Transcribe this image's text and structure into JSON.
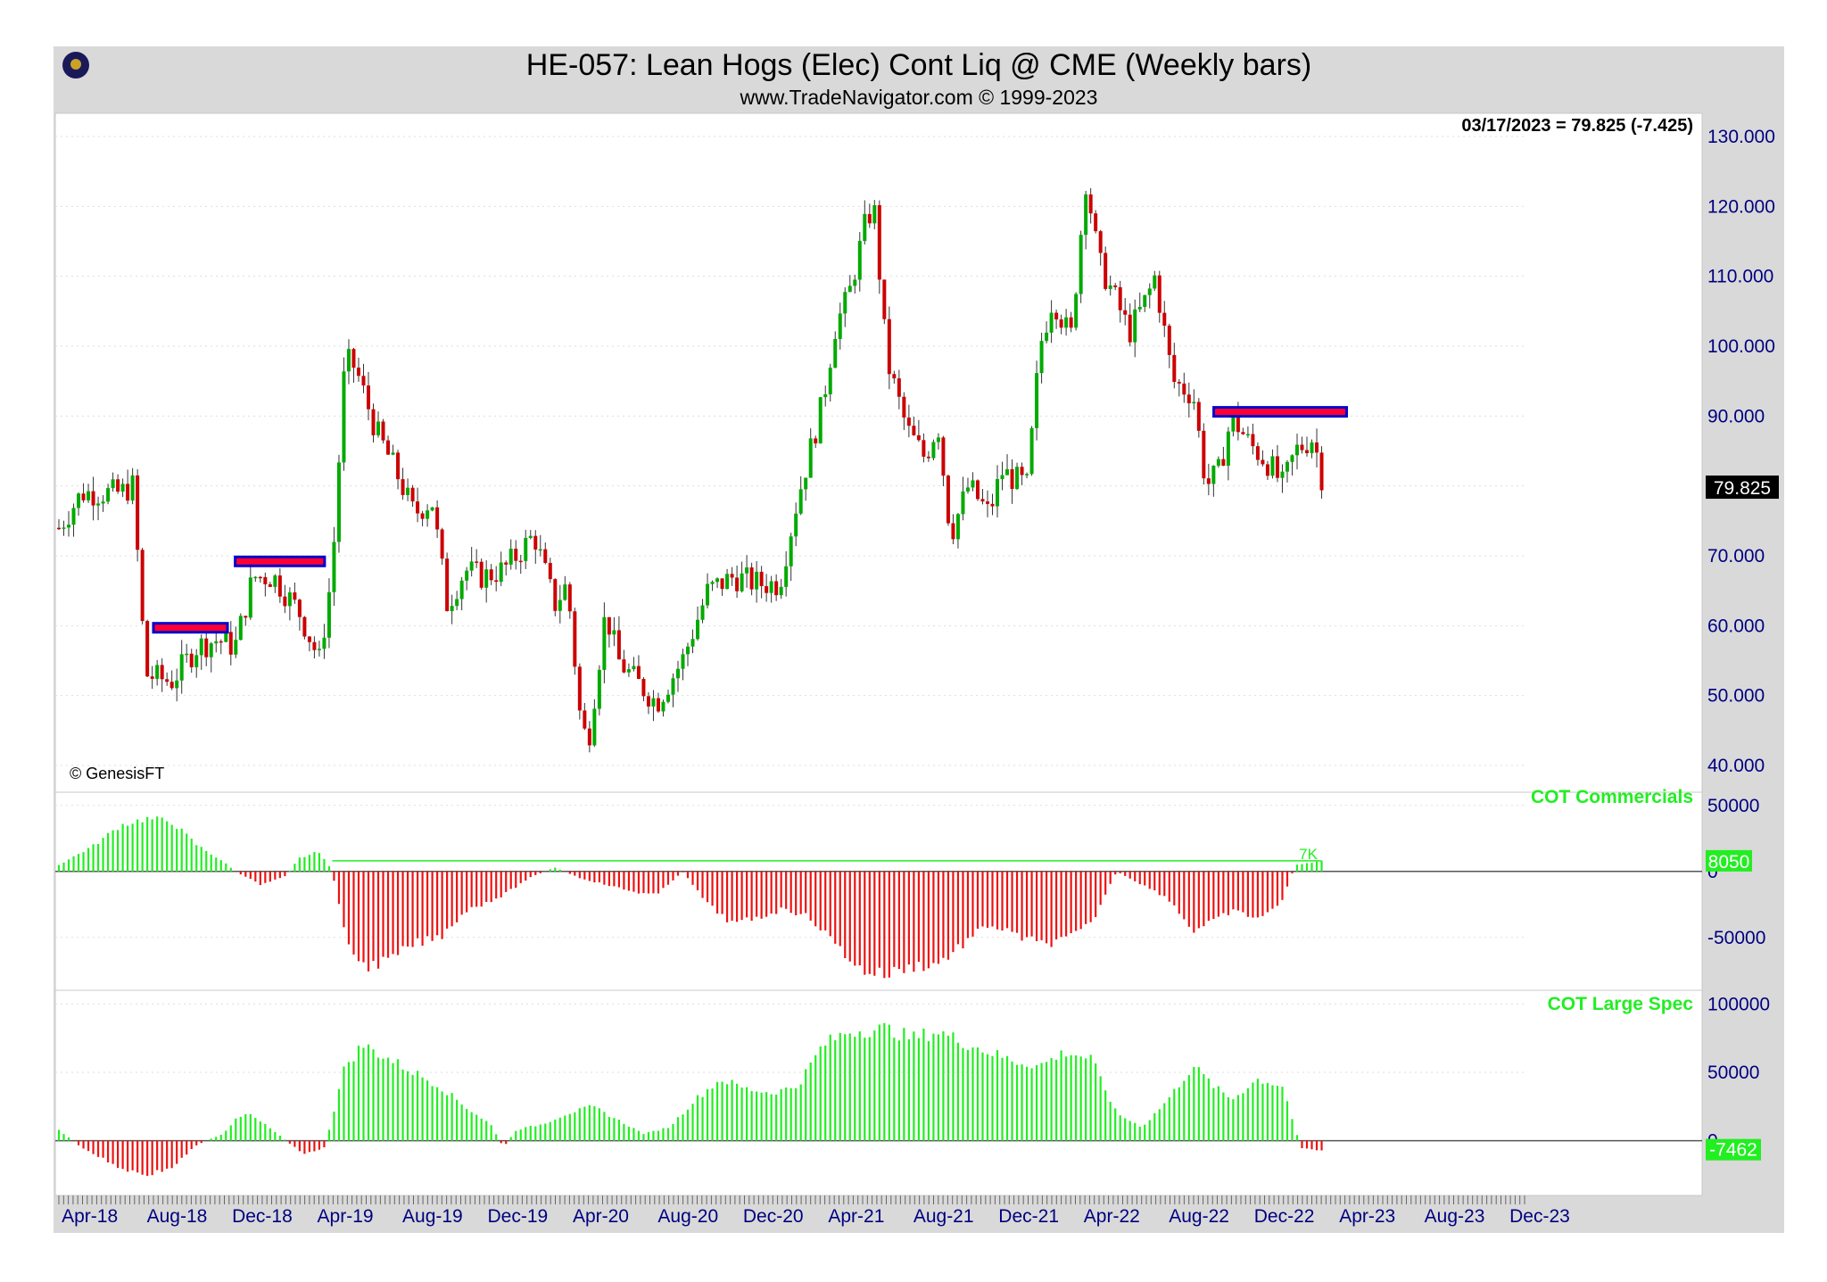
{
  "title": "HE-057:  Lean Hogs (Elec) Cont Liq @ CME  (Weekly bars)",
  "subtitle": "www.TradeNavigator.com © 1999-2023",
  "copyright": "© GenesisFT",
  "last_quote": "03/17/2023 = 79.825 (-7.425)",
  "last_price_label": "79.825",
  "colors": {
    "up": "#00aa00",
    "down": "#cc0000",
    "cot_pos": "#22ee22",
    "cot_neg": "#ee1111",
    "level_line": "#0000cc",
    "level_fill": "#ff0033",
    "axis_text": "#000080"
  },
  "chart_data": [
    {
      "type": "candlestick",
      "title": "HE-057:  Lean Hogs (Elec) Cont Liq @ CME  (Weekly bars)",
      "ylim": [
        40,
        130
      ],
      "y_ticks": [
        "130.000",
        "120.000",
        "110.000",
        "100.000",
        "90.000",
        "70.000",
        "60.000",
        "50.000",
        "40.000"
      ],
      "x_ticks": [
        "Apr-18",
        "Aug-18",
        "Dec-18",
        "Apr-19",
        "Aug-19",
        "Dec-19",
        "Apr-20",
        "Aug-20",
        "Dec-20",
        "Apr-21",
        "Aug-21",
        "Dec-21",
        "Apr-22",
        "Aug-22",
        "Dec-22",
        "Apr-23",
        "Aug-23",
        "Dec-23"
      ],
      "close_path": [
        [
          2018.26,
          74
        ],
        [
          2018.35,
          79
        ],
        [
          2018.5,
          79
        ],
        [
          2018.55,
          80
        ],
        [
          2018.6,
          53
        ],
        [
          2018.7,
          52
        ],
        [
          2018.8,
          57
        ],
        [
          2018.88,
          58
        ],
        [
          2018.95,
          57
        ],
        [
          2019.02,
          67
        ],
        [
          2019.1,
          67
        ],
        [
          2019.2,
          62
        ],
        [
          2019.28,
          55
        ],
        [
          2019.33,
          68
        ],
        [
          2019.38,
          98
        ],
        [
          2019.42,
          97
        ],
        [
          2019.5,
          88
        ],
        [
          2019.58,
          82
        ],
        [
          2019.65,
          76
        ],
        [
          2019.72,
          78
        ],
        [
          2019.78,
          63
        ],
        [
          2019.85,
          68
        ],
        [
          2019.92,
          67
        ],
        [
          2020.0,
          68
        ],
        [
          2020.05,
          70
        ],
        [
          2020.12,
          73
        ],
        [
          2020.2,
          63
        ],
        [
          2020.25,
          66
        ],
        [
          2020.3,
          47
        ],
        [
          2020.33,
          43
        ],
        [
          2020.4,
          62
        ],
        [
          2020.45,
          55
        ],
        [
          2020.52,
          52
        ],
        [
          2020.6,
          49
        ],
        [
          2020.7,
          55
        ],
        [
          2020.8,
          65
        ],
        [
          2020.9,
          67
        ],
        [
          2021.0,
          66
        ],
        [
          2021.08,
          66
        ],
        [
          2021.15,
          78
        ],
        [
          2021.25,
          92
        ],
        [
          2021.3,
          103
        ],
        [
          2021.35,
          107
        ],
        [
          2021.42,
          118
        ],
        [
          2021.45,
          120
        ],
        [
          2021.5,
          98
        ],
        [
          2021.58,
          88
        ],
        [
          2021.65,
          84
        ],
        [
          2021.7,
          89
        ],
        [
          2021.75,
          73
        ],
        [
          2021.82,
          80
        ],
        [
          2021.9,
          76
        ],
        [
          2021.95,
          82
        ],
        [
          2022.05,
          80
        ],
        [
          2022.1,
          100
        ],
        [
          2022.15,
          107
        ],
        [
          2022.22,
          101
        ],
        [
          2022.28,
          124
        ],
        [
          2022.33,
          112
        ],
        [
          2022.38,
          108
        ],
        [
          2022.45,
          102
        ],
        [
          2022.52,
          107
        ],
        [
          2022.55,
          110
        ],
        [
          2022.62,
          95
        ],
        [
          2022.7,
          93
        ],
        [
          2022.75,
          80
        ],
        [
          2022.8,
          82
        ],
        [
          2022.85,
          90
        ],
        [
          2022.92,
          86
        ],
        [
          2023.0,
          83
        ],
        [
          2023.05,
          80
        ],
        [
          2023.1,
          85
        ],
        [
          2023.17,
          87
        ],
        [
          2023.21,
          80
        ]
      ],
      "levels": [
        {
          "from": 2018.63,
          "to": 2018.92,
          "price": 59.7
        },
        {
          "from": 2018.95,
          "to": 2019.3,
          "price": 69.2
        },
        {
          "from": 2022.78,
          "to": 2023.3,
          "price": 90.6
        }
      ],
      "last": {
        "date": "03/17/2023",
        "close": 79.825,
        "change": -7.425
      }
    },
    {
      "type": "bar",
      "title": "COT Commercials",
      "ylim": [
        -90000,
        60000
      ],
      "y_ticks": [
        "50000",
        "0",
        "-50000"
      ],
      "last_value_label": "8050",
      "marker_label": "7K",
      "path": [
        [
          2018.26,
          5000
        ],
        [
          2018.4,
          20000
        ],
        [
          2018.5,
          35000
        ],
        [
          2018.6,
          40000
        ],
        [
          2018.7,
          38000
        ],
        [
          2018.8,
          20000
        ],
        [
          2018.9,
          8000
        ],
        [
          2018.95,
          0
        ],
        [
          2019.0,
          -5000
        ],
        [
          2019.05,
          -10000
        ],
        [
          2019.15,
          -3000
        ],
        [
          2019.2,
          10000
        ],
        [
          2019.28,
          15000
        ],
        [
          2019.33,
          0
        ],
        [
          2019.38,
          -50000
        ],
        [
          2019.45,
          -72000
        ],
        [
          2019.55,
          -68000
        ],
        [
          2019.65,
          -55000
        ],
        [
          2019.75,
          -50000
        ],
        [
          2019.85,
          -30000
        ],
        [
          2019.95,
          -22000
        ],
        [
          2020.0,
          -18000
        ],
        [
          2020.1,
          -5000
        ],
        [
          2020.2,
          3000
        ],
        [
          2020.3,
          -5000
        ],
        [
          2020.4,
          -10000
        ],
        [
          2020.5,
          -15000
        ],
        [
          2020.6,
          -18000
        ],
        [
          2020.7,
          0
        ],
        [
          2020.8,
          -25000
        ],
        [
          2020.9,
          -40000
        ],
        [
          2021.0,
          -35000
        ],
        [
          2021.1,
          -28000
        ],
        [
          2021.2,
          -35000
        ],
        [
          2021.3,
          -55000
        ],
        [
          2021.4,
          -75000
        ],
        [
          2021.5,
          -78000
        ],
        [
          2021.6,
          -72000
        ],
        [
          2021.7,
          -70000
        ],
        [
          2021.8,
          -55000
        ],
        [
          2021.9,
          -40000
        ],
        [
          2022.0,
          -48000
        ],
        [
          2022.1,
          -55000
        ],
        [
          2022.2,
          -52000
        ],
        [
          2022.3,
          -40000
        ],
        [
          2022.4,
          0
        ],
        [
          2022.5,
          -10000
        ],
        [
          2022.6,
          -20000
        ],
        [
          2022.7,
          -45000
        ],
        [
          2022.78,
          -38000
        ],
        [
          2022.85,
          -30000
        ],
        [
          2022.95,
          -35000
        ],
        [
          2023.0,
          -32000
        ],
        [
          2023.05,
          -20000
        ],
        [
          2023.1,
          5000
        ],
        [
          2023.21,
          8050
        ]
      ]
    },
    {
      "type": "bar",
      "title": "COT Large Spec",
      "ylim": [
        -40000,
        110000
      ],
      "y_ticks": [
        "100000",
        "50000",
        "0"
      ],
      "last_value_label": "-7462",
      "path": [
        [
          2018.26,
          8000
        ],
        [
          2018.35,
          -5000
        ],
        [
          2018.5,
          -20000
        ],
        [
          2018.6,
          -25000
        ],
        [
          2018.7,
          -20000
        ],
        [
          2018.8,
          -3000
        ],
        [
          2018.9,
          5000
        ],
        [
          2018.95,
          15000
        ],
        [
          2019.0,
          20000
        ],
        [
          2019.08,
          10000
        ],
        [
          2019.15,
          0
        ],
        [
          2019.22,
          -10000
        ],
        [
          2019.3,
          -5000
        ],
        [
          2019.38,
          55000
        ],
        [
          2019.45,
          70000
        ],
        [
          2019.55,
          60000
        ],
        [
          2019.65,
          50000
        ],
        [
          2019.75,
          40000
        ],
        [
          2019.85,
          25000
        ],
        [
          2019.95,
          12000
        ],
        [
          2020.0,
          -5000
        ],
        [
          2020.05,
          8000
        ],
        [
          2020.15,
          12000
        ],
        [
          2020.25,
          20000
        ],
        [
          2020.35,
          25000
        ],
        [
          2020.45,
          15000
        ],
        [
          2020.55,
          5000
        ],
        [
          2020.65,
          10000
        ],
        [
          2020.75,
          30000
        ],
        [
          2020.85,
          45000
        ],
        [
          2020.95,
          38000
        ],
        [
          2021.05,
          35000
        ],
        [
          2021.15,
          40000
        ],
        [
          2021.25,
          70000
        ],
        [
          2021.35,
          80000
        ],
        [
          2021.5,
          82000
        ],
        [
          2021.6,
          75000
        ],
        [
          2021.7,
          80000
        ],
        [
          2021.8,
          72000
        ],
        [
          2021.9,
          65000
        ],
        [
          2022.0,
          58000
        ],
        [
          2022.1,
          55000
        ],
        [
          2022.2,
          65000
        ],
        [
          2022.3,
          60000
        ],
        [
          2022.4,
          20000
        ],
        [
          2022.5,
          10000
        ],
        [
          2022.6,
          30000
        ],
        [
          2022.7,
          55000
        ],
        [
          2022.78,
          40000
        ],
        [
          2022.85,
          30000
        ],
        [
          2022.95,
          45000
        ],
        [
          2023.05,
          40000
        ],
        [
          2023.12,
          -5000
        ],
        [
          2023.21,
          -7462
        ]
      ]
    }
  ]
}
